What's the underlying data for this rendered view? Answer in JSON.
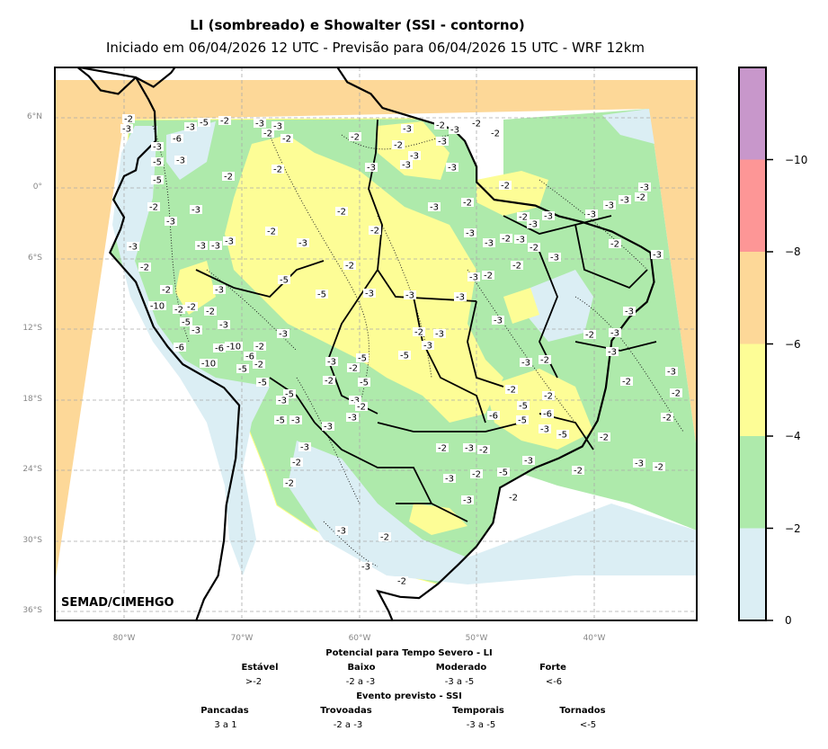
{
  "header": {
    "title": "LI (sombreado) e Showalter (SSI - contorno)",
    "subtitle": "Iniciado em 06/04/2026 12 UTC - Previsão para 06/04/2026 15 UTC - WRF 12km"
  },
  "map": {
    "lat_labels": [
      "6°N",
      "0°",
      "6°S",
      "12°S",
      "18°S",
      "24°S",
      "30°S",
      "36°S"
    ],
    "lon_labels": [
      "80°W",
      "70°W",
      "60°W",
      "50°W",
      "40°W"
    ],
    "credit": "SEMAD/CIMEHGO",
    "contour_labels": [
      "-2",
      "-3",
      "-3",
      "-6",
      "-5",
      "-3",
      "-5",
      "-3",
      "-5",
      "-2",
      "-3",
      "-3",
      "-2",
      "-2",
      "-2",
      "-2",
      "-2",
      "-3",
      "-3",
      "-3",
      "-3",
      "-3",
      "-2",
      "-3",
      "-2",
      "-2",
      "-3",
      "-2",
      "-3",
      "-3",
      "-3",
      "-2",
      "-3",
      "-2",
      "-3",
      "-2",
      "-3",
      "-2",
      "-2",
      "-3",
      "-2",
      "-2",
      "-5",
      "-3",
      "-2",
      "-2",
      "-3",
      "-10",
      "-2",
      "-2",
      "-2",
      "-5",
      "-3",
      "-3",
      "-6",
      "-6",
      "-10",
      "-2",
      "-6",
      "-10",
      "-5",
      "-2",
      "-5",
      "-3",
      "-5",
      "-3",
      "-3",
      "-3",
      "-3",
      "-2",
      "-3",
      "-3",
      "-2",
      "-3",
      "-2",
      "-3",
      "-2",
      "-2",
      "-3",
      "-3",
      "-3",
      "-2",
      "-3",
      "-3",
      "-5",
      "-5",
      "-3",
      "-2",
      "-5",
      "-2",
      "-3",
      "-2",
      "-3",
      "-3",
      "-5",
      "-3",
      "-5",
      "-3",
      "-3",
      "-2",
      "-2",
      "-3",
      "-3",
      "-2",
      "-2",
      "-2",
      "-3",
      "-2",
      "-3",
      "-2",
      "-5",
      "-3",
      "-2",
      "-3",
      "-6",
      "-5",
      "-3",
      "-6",
      "-5",
      "-5",
      "-2",
      "-2",
      "-3",
      "-2",
      "-2",
      "-2",
      "-3",
      "-2",
      "-2",
      "-2",
      "-3",
      "-2",
      "-3",
      "-3",
      "-2",
      "-3",
      "-3",
      "-2",
      "-3",
      "-3",
      "-3",
      "-2",
      "-3"
    ]
  },
  "colorbar": {
    "colors": [
      "#dbeef4",
      "#aeeaab",
      "#fdfd96",
      "#fdd898",
      "#fd9696",
      "#c897cb"
    ],
    "tick_labels": [
      "0",
      "−2",
      "−4",
      "−6",
      "−8",
      "−10"
    ]
  },
  "legend": {
    "li_title": "Potencial para Tempo Severo - LI",
    "li_categories": [
      {
        "name": "Estável",
        "range": ">-2"
      },
      {
        "name": "Baixo",
        "range": "-2 a -3"
      },
      {
        "name": "Moderado",
        "range": "-3 a -5"
      },
      {
        "name": "Forte",
        "range": "<-6"
      }
    ],
    "ssi_title": "Evento previsto - SSI",
    "ssi_categories": [
      {
        "name": "Pancadas",
        "range": "3 a 1"
      },
      {
        "name": "Trovoadas",
        "range": "-2 a -3"
      },
      {
        "name": "Temporais",
        "range": "-3 a -5"
      },
      {
        "name": "Tornados",
        "range": "<-5"
      }
    ]
  }
}
